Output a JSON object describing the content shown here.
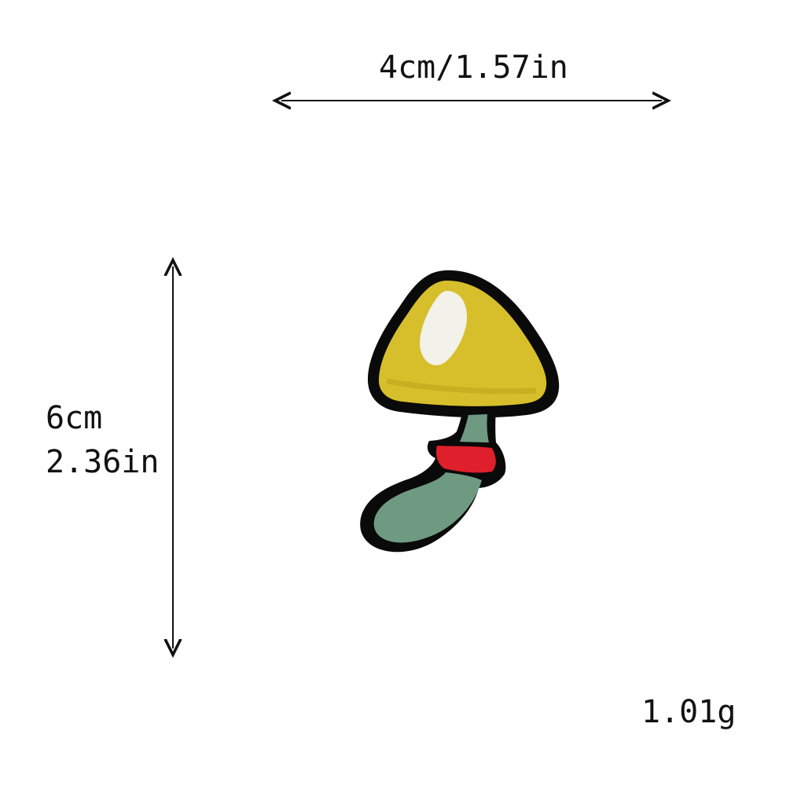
{
  "dimensions": {
    "width_label": "4cm/1.57in",
    "height_cm_label": "6cm",
    "height_in_label": "2.36in"
  },
  "weight": {
    "label": "1.01g"
  },
  "product": {
    "colors": {
      "cap": "#d7bf2b",
      "cap_shadow": "#bba21a",
      "highlight": "#f2f1ea",
      "collar": "#df1f2b",
      "stem": "#6f9a82",
      "outline": "#0a0a0a"
    }
  }
}
